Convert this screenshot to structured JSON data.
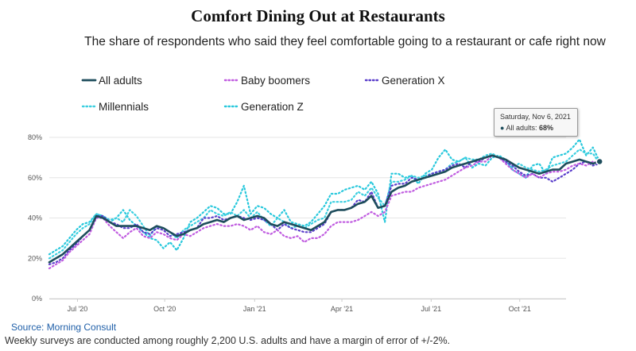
{
  "chart_data": {
    "type": "line",
    "title": "Comfort Dining Out at Restaurants",
    "subtitle": "The share of respondents who said they feel comfortable going to a restaurant or cafe right now",
    "ylim": [
      0,
      80
    ],
    "y_ticks": [
      "0%",
      "20%",
      "40%",
      "60%",
      "80%"
    ],
    "y_tick_values": [
      0,
      20,
      40,
      60,
      80
    ],
    "x_ticks": [
      "Jul '20",
      "Oct '20",
      "Jan '21",
      "Apr '21",
      "Jul '21",
      "Oct '21"
    ],
    "x_tick_values": [
      4.2,
      17.2,
      30.6,
      43.6,
      56.9,
      70.1
    ],
    "x_domain": [
      0,
      77
    ],
    "legend": "top-left",
    "series": [
      {
        "name": "All adults",
        "color": "#1e4d5c",
        "style": "solid",
        "values": [
          18,
          20,
          22,
          25,
          28,
          31,
          34,
          41,
          40,
          38,
          36,
          36,
          36,
          36,
          35,
          34,
          36,
          35,
          33,
          31,
          32,
          34,
          35,
          37,
          38,
          39,
          38,
          40,
          41,
          39,
          40,
          41,
          40,
          37,
          36,
          38,
          37,
          36,
          35,
          34,
          36,
          38,
          43,
          44,
          44,
          45,
          47,
          48,
          51,
          45,
          46,
          53,
          55,
          56,
          58,
          59,
          60,
          61,
          62,
          63,
          65,
          66,
          67,
          68,
          69,
          70,
          71,
          70,
          69,
          67,
          65,
          64,
          63,
          62,
          63,
          64,
          64,
          67,
          68,
          69,
          68,
          67,
          68
        ]
      },
      {
        "name": "Baby boomers",
        "color": "#c05ce0",
        "style": "dotted",
        "values": [
          15,
          17,
          19,
          23,
          26,
          29,
          32,
          40,
          40,
          36,
          33,
          30,
          33,
          35,
          31,
          30,
          33,
          32,
          30,
          29,
          32,
          31,
          33,
          35,
          36,
          37,
          36,
          36,
          37,
          36,
          34,
          36,
          33,
          32,
          34,
          31,
          30,
          31,
          28,
          30,
          30,
          32,
          36,
          38,
          38,
          38,
          39,
          41,
          43,
          41,
          43,
          51,
          52,
          53,
          53,
          55,
          56,
          57,
          58,
          59,
          61,
          63,
          65,
          66,
          68,
          68,
          71,
          70,
          67,
          64,
          62,
          60,
          62,
          60,
          62,
          63,
          63,
          64,
          66,
          67,
          66,
          68,
          67
        ]
      },
      {
        "name": "Generation X",
        "color": "#5b3fcb",
        "style": "dotted",
        "values": [
          17,
          18,
          20,
          24,
          27,
          31,
          34,
          41,
          41,
          38,
          37,
          35,
          35,
          37,
          33,
          32,
          35,
          34,
          31,
          32,
          33,
          34,
          35,
          40,
          40,
          41,
          39,
          40,
          41,
          40,
          39,
          40,
          39,
          37,
          34,
          37,
          35,
          34,
          33,
          33,
          35,
          37,
          43,
          44,
          44,
          45,
          49,
          48,
          53,
          45,
          46,
          56,
          57,
          57,
          60,
          59,
          60,
          62,
          63,
          64,
          66,
          67,
          65,
          68,
          68,
          70,
          71,
          70,
          68,
          66,
          63,
          61,
          62,
          60,
          60,
          58,
          60,
          62,
          64,
          67,
          68,
          66,
          67
        ]
      },
      {
        "name": "Millennials",
        "color": "#3ccfe0",
        "style": "dotted",
        "values": [
          20,
          22,
          24,
          28,
          32,
          35,
          37,
          42,
          41,
          39,
          40,
          38,
          44,
          41,
          36,
          31,
          36,
          35,
          33,
          30,
          34,
          36,
          38,
          40,
          44,
          42,
          41,
          43,
          41,
          44,
          40,
          43,
          39,
          36,
          40,
          38,
          35,
          36,
          35,
          37,
          39,
          40,
          48,
          48,
          48,
          49,
          53,
          51,
          55,
          50,
          46,
          58,
          58,
          59,
          61,
          60,
          61,
          62,
          63,
          64,
          67,
          68,
          70,
          69,
          69,
          71,
          72,
          70,
          68,
          65,
          67,
          65,
          64,
          63,
          64,
          66,
          67,
          68,
          71,
          74,
          72,
          72,
          67
        ]
      },
      {
        "name": "Generation Z",
        "color": "#28c8dc",
        "style": "dotted",
        "values": [
          22,
          24,
          26,
          30,
          34,
          37,
          38,
          42,
          41,
          38,
          40,
          44,
          39,
          36,
          33,
          30,
          29,
          25,
          28,
          24,
          30,
          38,
          40,
          43,
          46,
          45,
          42,
          42,
          48,
          56,
          42,
          46,
          45,
          42,
          40,
          44,
          38,
          37,
          36,
          38,
          42,
          46,
          52,
          52,
          54,
          55,
          56,
          54,
          58,
          52,
          38,
          62,
          62,
          60,
          61,
          57,
          62,
          64,
          70,
          74,
          69,
          68,
          70,
          65,
          67,
          66,
          70,
          71,
          69,
          64,
          62,
          60,
          66,
          67,
          62,
          70,
          71,
          72,
          75,
          79,
          71,
          75,
          68
        ]
      }
    ]
  },
  "tooltip": {
    "date": "Saturday, Nov 6, 2021",
    "series_label": "All adults:",
    "value": "68%"
  },
  "source": "Source: Morning Consult",
  "footnote": "Weekly surveys are conducted among roughly 2,200 U.S. adults and have a margin of error of +/-2%."
}
